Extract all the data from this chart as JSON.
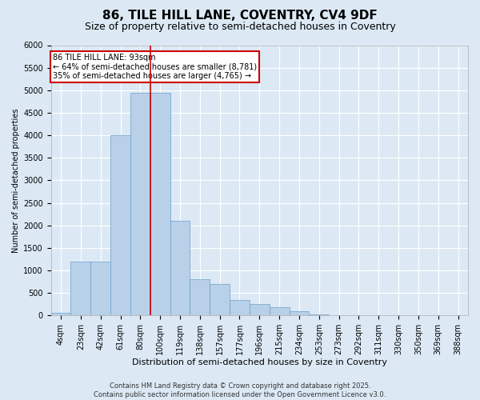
{
  "title1": "86, TILE HILL LANE, COVENTRY, CV4 9DF",
  "title2": "Size of property relative to semi-detached houses in Coventry",
  "xlabel": "Distribution of semi-detached houses by size in Coventry",
  "ylabel": "Number of semi-detached properties",
  "annotation_line1": "86 TILE HILL LANE: 93sqm",
  "annotation_line2": "← 64% of semi-detached houses are smaller (8,781)",
  "annotation_line3": "35% of semi-detached houses are larger (4,765) →",
  "footer1": "Contains HM Land Registry data © Crown copyright and database right 2025.",
  "footer2": "Contains public sector information licensed under the Open Government Licence v3.0.",
  "categories": [
    "4sqm",
    "23sqm",
    "42sqm",
    "61sqm",
    "80sqm",
    "100sqm",
    "119sqm",
    "138sqm",
    "157sqm",
    "177sqm",
    "196sqm",
    "215sqm",
    "234sqm",
    "253sqm",
    "273sqm",
    "292sqm",
    "311sqm",
    "330sqm",
    "350sqm",
    "369sqm",
    "388sqm"
  ],
  "values": [
    60,
    1200,
    1200,
    4000,
    4950,
    4950,
    2100,
    800,
    700,
    350,
    250,
    175,
    100,
    30,
    10,
    5,
    2,
    1,
    1,
    0,
    0
  ],
  "bar_color": "#b8d0e8",
  "bar_edge_color": "#6aa0cc",
  "reference_line_color": "#cc0000",
  "ref_line_x": 4.5,
  "ylim": [
    0,
    6000
  ],
  "yticks": [
    0,
    500,
    1000,
    1500,
    2000,
    2500,
    3000,
    3500,
    4000,
    4500,
    5000,
    5500,
    6000
  ],
  "background_color": "#dce9f5",
  "grid_color": "#ffffff",
  "title1_fontsize": 11,
  "title2_fontsize": 9,
  "axis_fontsize": 7,
  "xlabel_fontsize": 8,
  "ylabel_fontsize": 7,
  "annotation_fontsize": 7,
  "footer_fontsize": 6,
  "annotation_box_color": "#cc0000"
}
